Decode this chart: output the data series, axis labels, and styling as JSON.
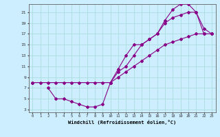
{
  "xlabel": "Windchill (Refroidissement éolien,°C)",
  "background_color": "#cceeff",
  "line_color": "#880088",
  "grid_color": "#aadddd",
  "xlim": [
    -0.5,
    23.5
  ],
  "ylim": [
    2.5,
    22.5
  ],
  "xticks": [
    0,
    1,
    2,
    3,
    4,
    5,
    6,
    7,
    8,
    9,
    10,
    11,
    12,
    13,
    14,
    15,
    16,
    17,
    18,
    19,
    20,
    21,
    22,
    23
  ],
  "yticks": [
    3,
    5,
    7,
    9,
    11,
    13,
    15,
    17,
    19,
    21
  ],
  "line1_x": [
    0,
    1,
    2,
    3,
    4,
    5,
    6,
    7,
    8,
    9,
    10,
    11,
    12,
    13,
    14,
    15,
    16,
    17,
    18,
    19,
    20,
    21,
    22,
    23
  ],
  "line1_y": [
    8,
    8,
    8,
    8,
    8,
    8,
    8,
    8,
    8,
    8,
    8,
    10,
    11,
    13,
    15,
    16,
    17,
    19,
    20,
    20.5,
    21,
    21,
    17,
    17
  ],
  "line2_x": [
    2,
    3,
    4,
    5,
    6,
    7,
    8,
    9,
    10,
    11,
    12,
    13,
    14,
    15,
    16,
    17,
    18,
    19,
    20,
    21,
    22,
    23
  ],
  "line2_y": [
    7,
    5,
    5,
    4.5,
    4,
    3.5,
    3.5,
    4,
    8,
    10.5,
    13,
    15,
    15,
    16,
    17,
    19.5,
    21.5,
    22.5,
    22.5,
    21,
    18,
    17
  ],
  "line3_x": [
    0,
    10,
    11,
    12,
    13,
    14,
    15,
    16,
    17,
    18,
    19,
    20,
    21,
    22,
    23
  ],
  "line3_y": [
    8,
    8,
    9,
    10,
    11,
    12,
    13,
    14,
    15,
    15.5,
    16,
    16.5,
    17,
    17,
    17
  ]
}
